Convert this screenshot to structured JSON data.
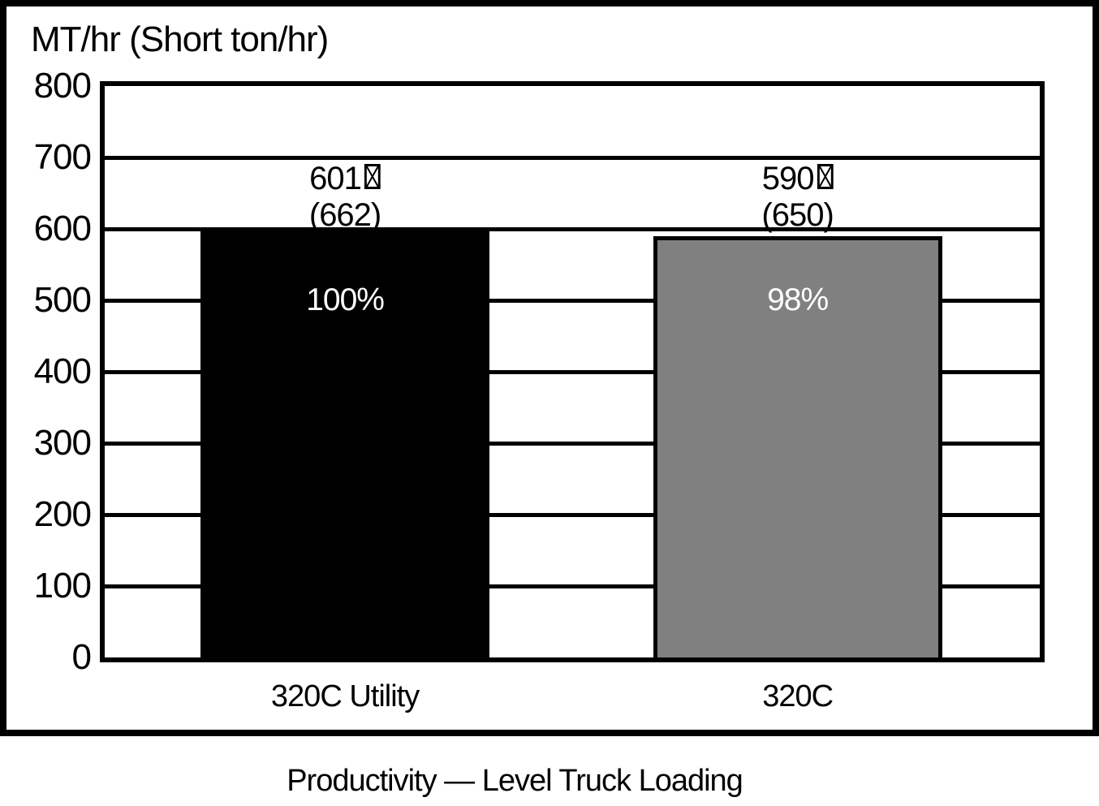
{
  "chart_data": {
    "type": "bar",
    "title": "Productivity — Level Truck Loading",
    "y_axis_label": "MT/hr (Short ton/hr)",
    "xlabel": "",
    "ylabel": "MT/hr (Short ton/hr)",
    "ylim": [
      0,
      800
    ],
    "yticks": [
      0,
      100,
      200,
      300,
      400,
      500,
      600,
      700,
      800
    ],
    "grid": "horizontal gridlines every 100, black",
    "legend": "none",
    "frame": "outer black frame around chart, title outside below",
    "categories": [
      "320C Utility",
      "320C"
    ],
    "series": [
      {
        "name": "320C Utility",
        "value_mt_hr": 601,
        "value_short_ton_hr": 662,
        "value_label": "601",
        "value_label_suffix_glyph": "☒",
        "secondary_label": "(662)",
        "percent_label": "100%",
        "bar_color": "#000000",
        "percent_text_color": "#ffffff"
      },
      {
        "name": "320C",
        "value_mt_hr": 590,
        "value_short_ton_hr": 650,
        "value_label": "590",
        "value_label_suffix_glyph": "☒",
        "secondary_label": "(650)",
        "percent_label": "98%",
        "bar_color": "#808080",
        "percent_text_color": "#ffffff"
      }
    ],
    "layout": {
      "bar_centers_frac": [
        0.257,
        0.741
      ],
      "bar_width_frac": 0.309,
      "bar_border_color": "#000000",
      "value_labels_position": "above bars, two centered lines ending at ~600 level"
    }
  },
  "colors": {
    "background": "#ffffff",
    "frame_and_grid": "#000000",
    "bar_1": "#000000",
    "bar_2": "#808080",
    "percent_text": "#ffffff"
  },
  "icons": {
    "missing_glyph": "☒"
  }
}
